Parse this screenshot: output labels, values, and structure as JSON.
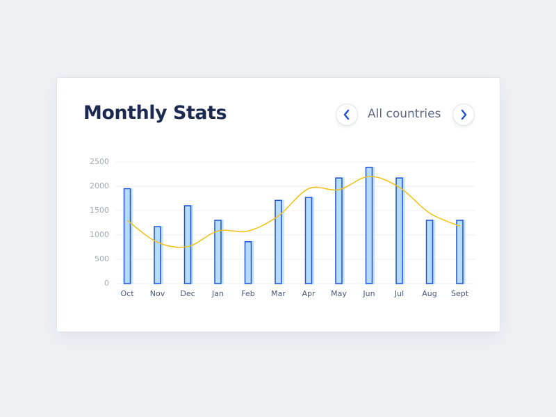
{
  "header": {
    "title": "Monthly Stats",
    "filter": "All countries"
  },
  "chart_data": {
    "type": "bar",
    "categories": [
      "Oct",
      "Nov",
      "Dec",
      "Jan",
      "Feb",
      "Mar",
      "Apr",
      "May",
      "Jun",
      "Jul",
      "Aug",
      "Sept"
    ],
    "series": [
      {
        "type": "bar",
        "color": "#1f50d6",
        "fill": "#b5dcfa",
        "values": [
          1950,
          1170,
          1600,
          1300,
          860,
          1710,
          1770,
          2170,
          2390,
          2170,
          1300,
          1300
        ]
      },
      {
        "type": "line",
        "color": "#f2c21b",
        "values": [
          1300,
          850,
          760,
          1080,
          1080,
          1390,
          1950,
          1930,
          2200,
          1980,
          1450,
          1180
        ]
      }
    ],
    "ylim": [
      0,
      2500
    ],
    "yticks": [
      0,
      500,
      1000,
      1500,
      2000,
      2500
    ],
    "grid": true
  }
}
